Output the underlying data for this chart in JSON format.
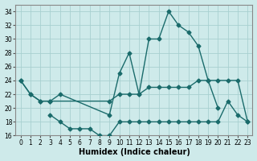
{
  "xlabel": "Humidex (Indice chaleur)",
  "bg_color": "#ceeaea",
  "grid_color": "#a8d0d0",
  "line_color": "#1a6b6b",
  "xlim": [
    -0.5,
    23.5
  ],
  "ylim": [
    16,
    35
  ],
  "xticks": [
    0,
    1,
    2,
    3,
    4,
    5,
    6,
    7,
    8,
    9,
    10,
    11,
    12,
    13,
    14,
    15,
    16,
    17,
    18,
    19,
    20,
    21,
    22,
    23
  ],
  "yticks": [
    16,
    18,
    20,
    22,
    24,
    26,
    28,
    30,
    32,
    34
  ],
  "line1_x": [
    0,
    1,
    2,
    3,
    4,
    9,
    10,
    11,
    12,
    13,
    14,
    15,
    16,
    17,
    18,
    19,
    20
  ],
  "line1_y": [
    24,
    22,
    21,
    21,
    22,
    19,
    25,
    28,
    22,
    30,
    30,
    34,
    32,
    31,
    29,
    24,
    20
  ],
  "line2_x": [
    0,
    1,
    2,
    3,
    9,
    10,
    11,
    12,
    13,
    14,
    15,
    16,
    17,
    18,
    19,
    20,
    21,
    22,
    23
  ],
  "line2_y": [
    24,
    22,
    21,
    21,
    21,
    22,
    22,
    22,
    23,
    23,
    23,
    23,
    23,
    24,
    24,
    24,
    24,
    24,
    18
  ],
  "line3_x": [
    3,
    4,
    5,
    6,
    7,
    8,
    9,
    10,
    11,
    12,
    13,
    14,
    15,
    16,
    17,
    18,
    19,
    20,
    21,
    22,
    23
  ],
  "line3_y": [
    19,
    18,
    17,
    17,
    17,
    16,
    16,
    18,
    18,
    18,
    18,
    18,
    18,
    18,
    18,
    18,
    18,
    18,
    21,
    19,
    18
  ]
}
